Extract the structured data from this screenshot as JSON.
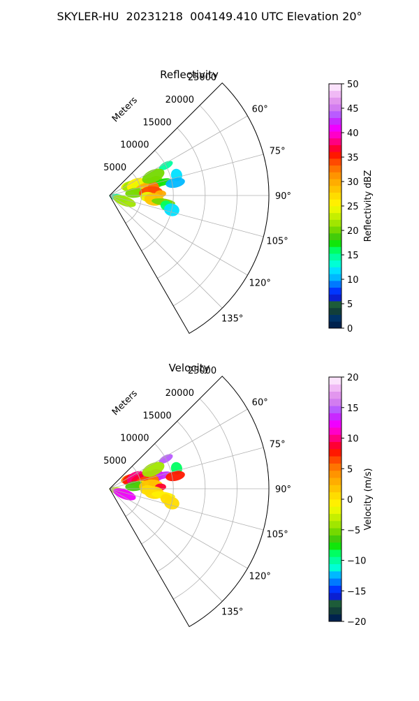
{
  "figure": {
    "title": "SKYLER-HU  20231218  004149.410 UTC Elevation 20°"
  },
  "chart_data": [
    {
      "type": "heatmap",
      "subtype": "polar-ppi-sector",
      "title": "Reflectivity",
      "range_label": "Meters",
      "range_ticks": [
        5000,
        10000,
        15000,
        20000,
        25000
      ],
      "range_tick_labels": [
        "5000",
        "10000",
        "15000",
        "20000",
        "25000"
      ],
      "range_max": 25000,
      "azimuth_range": [
        45,
        150
      ],
      "azimuth_ticks": [
        60,
        75,
        90,
        105,
        120,
        135
      ],
      "azimuth_tick_labels": [
        "60°",
        "75°",
        "90°",
        "105°",
        "120°",
        "135°"
      ],
      "grid": true,
      "colorbar": {
        "label": "Reflectivity dBZ",
        "min": 0,
        "max": 50,
        "ticks": [
          0,
          5,
          10,
          15,
          20,
          25,
          30,
          35,
          40,
          45,
          50
        ],
        "tick_labels": [
          "0",
          "5",
          "10",
          "15",
          "20",
          "25",
          "30",
          "35",
          "40",
          "45",
          "50"
        ],
        "colors": [
          "#00224e",
          "#003366",
          "#123f3a",
          "#1d5c39",
          "#0a1fd2",
          "#0036ff",
          "#0079ff",
          "#00b8ff",
          "#00e0ff",
          "#00ffd5",
          "#00ffa0",
          "#00ff62",
          "#11e60a",
          "#43cc0a",
          "#74d900",
          "#a1e600",
          "#c5ef00",
          "#e9f800",
          "#fff000",
          "#ffdc00",
          "#ffc400",
          "#ffad00",
          "#ff9400",
          "#ff7400",
          "#ff4a00",
          "#ff1800",
          "#ff0033",
          "#ff0080",
          "#ff00c8",
          "#f000ff",
          "#c829ff",
          "#b95cff",
          "#d27cf0",
          "#e296ee",
          "#f0b9f5",
          "#fbe2fc"
        ]
      },
      "echo_regions": [
        {
          "az": 60,
          "r": 3000,
          "value": 24
        },
        {
          "az": 65,
          "r": 3500,
          "value": 22
        },
        {
          "az": 68,
          "r": 4500,
          "value": 26
        },
        {
          "az": 70,
          "r": 5500,
          "value": 24
        },
        {
          "az": 72,
          "r": 6500,
          "value": 28
        },
        {
          "az": 74,
          "r": 7500,
          "value": 22
        },
        {
          "az": 76,
          "r": 8500,
          "value": 18
        },
        {
          "az": 78,
          "r": 6000,
          "value": 30
        },
        {
          "az": 80,
          "r": 7000,
          "value": 32
        },
        {
          "az": 82,
          "r": 5000,
          "value": 26
        },
        {
          "az": 84,
          "r": 4000,
          "value": 20
        },
        {
          "az": 86,
          "r": 6500,
          "value": 34
        },
        {
          "az": 88,
          "r": 8000,
          "value": 30
        },
        {
          "az": 92,
          "r": 6000,
          "value": 24
        },
        {
          "az": 95,
          "r": 7000,
          "value": 28
        },
        {
          "az": 97,
          "r": 8500,
          "value": 20
        },
        {
          "az": 100,
          "r": 9000,
          "value": 16
        },
        {
          "az": 103,
          "r": 10000,
          "value": 12
        },
        {
          "az": 105,
          "r": 1500,
          "value": 14
        },
        {
          "az": 110,
          "r": 2500,
          "value": 22
        },
        {
          "az": 73,
          "r": 11000,
          "value": 12
        },
        {
          "az": 62,
          "r": 10000,
          "value": 14
        },
        {
          "az": 79,
          "r": 10500,
          "value": 11
        },
        {
          "az": 66,
          "r": 7500,
          "value": 20
        }
      ]
    },
    {
      "type": "heatmap",
      "subtype": "polar-ppi-sector",
      "title": "Velocity",
      "range_label": "Meters",
      "range_ticks": [
        5000,
        10000,
        15000,
        20000,
        25000
      ],
      "range_tick_labels": [
        "5000",
        "10000",
        "15000",
        "20000",
        "25000"
      ],
      "range_max": 25000,
      "azimuth_range": [
        45,
        150
      ],
      "azimuth_ticks": [
        60,
        75,
        90,
        105,
        120,
        135
      ],
      "azimuth_tick_labels": [
        "60°",
        "75°",
        "90°",
        "105°",
        "120°",
        "135°"
      ],
      "grid": true,
      "colorbar": {
        "label": "Velocity (m/s)",
        "min": -20,
        "max": 20,
        "ticks": [
          -20,
          -15,
          -10,
          -5,
          0,
          5,
          10,
          15,
          20
        ],
        "tick_labels": [
          "−20",
          "−15",
          "−10",
          "−5",
          "0",
          "5",
          "10",
          "15",
          "20"
        ],
        "colors": [
          "#00224e",
          "#123f3a",
          "#1d5c39",
          "#0a1fd2",
          "#0036ff",
          "#0079ff",
          "#00b8ff",
          "#00ffd5",
          "#00ffa0",
          "#00ff62",
          "#11e60a",
          "#43cc0a",
          "#74d900",
          "#a1e600",
          "#c5ef00",
          "#e9f800",
          "#fff000",
          "#ffdc00",
          "#ffc400",
          "#ffad00",
          "#ff9400",
          "#ff7400",
          "#ff4a00",
          "#ff1800",
          "#ff0033",
          "#ff0080",
          "#ff00c8",
          "#f000ff",
          "#c829ff",
          "#b95cff",
          "#d27cf0",
          "#e296ee",
          "#f0b9f5",
          "#fbe2fc"
        ]
      },
      "echo_regions": [
        {
          "az": 60,
          "r": 3000,
          "value": 4
        },
        {
          "az": 65,
          "r": 3500,
          "value": 8
        },
        {
          "az": 68,
          "r": 4500,
          "value": 10
        },
        {
          "az": 70,
          "r": 5500,
          "value": 9
        },
        {
          "az": 72,
          "r": 6500,
          "value": 11
        },
        {
          "az": 74,
          "r": 7500,
          "value": 12
        },
        {
          "az": 76,
          "r": 8500,
          "value": 13
        },
        {
          "az": 78,
          "r": 6000,
          "value": 7
        },
        {
          "az": 80,
          "r": 7000,
          "value": 5
        },
        {
          "az": 82,
          "r": 5000,
          "value": -2
        },
        {
          "az": 84,
          "r": 4000,
          "value": -6
        },
        {
          "az": 86,
          "r": 6500,
          "value": 2
        },
        {
          "az": 88,
          "r": 8000,
          "value": 9
        },
        {
          "az": 92,
          "r": 6000,
          "value": 1
        },
        {
          "az": 95,
          "r": 7000,
          "value": 0
        },
        {
          "az": 97,
          "r": 8500,
          "value": -1
        },
        {
          "az": 100,
          "r": 9000,
          "value": 0
        },
        {
          "az": 103,
          "r": 10000,
          "value": 1
        },
        {
          "az": 105,
          "r": 1500,
          "value": -3
        },
        {
          "az": 110,
          "r": 2500,
          "value": 12
        },
        {
          "az": 73,
          "r": 11000,
          "value": -9
        },
        {
          "az": 62,
          "r": 10000,
          "value": 15
        },
        {
          "az": 79,
          "r": 10500,
          "value": 8
        },
        {
          "az": 66,
          "r": 7500,
          "value": -4
        }
      ]
    }
  ]
}
